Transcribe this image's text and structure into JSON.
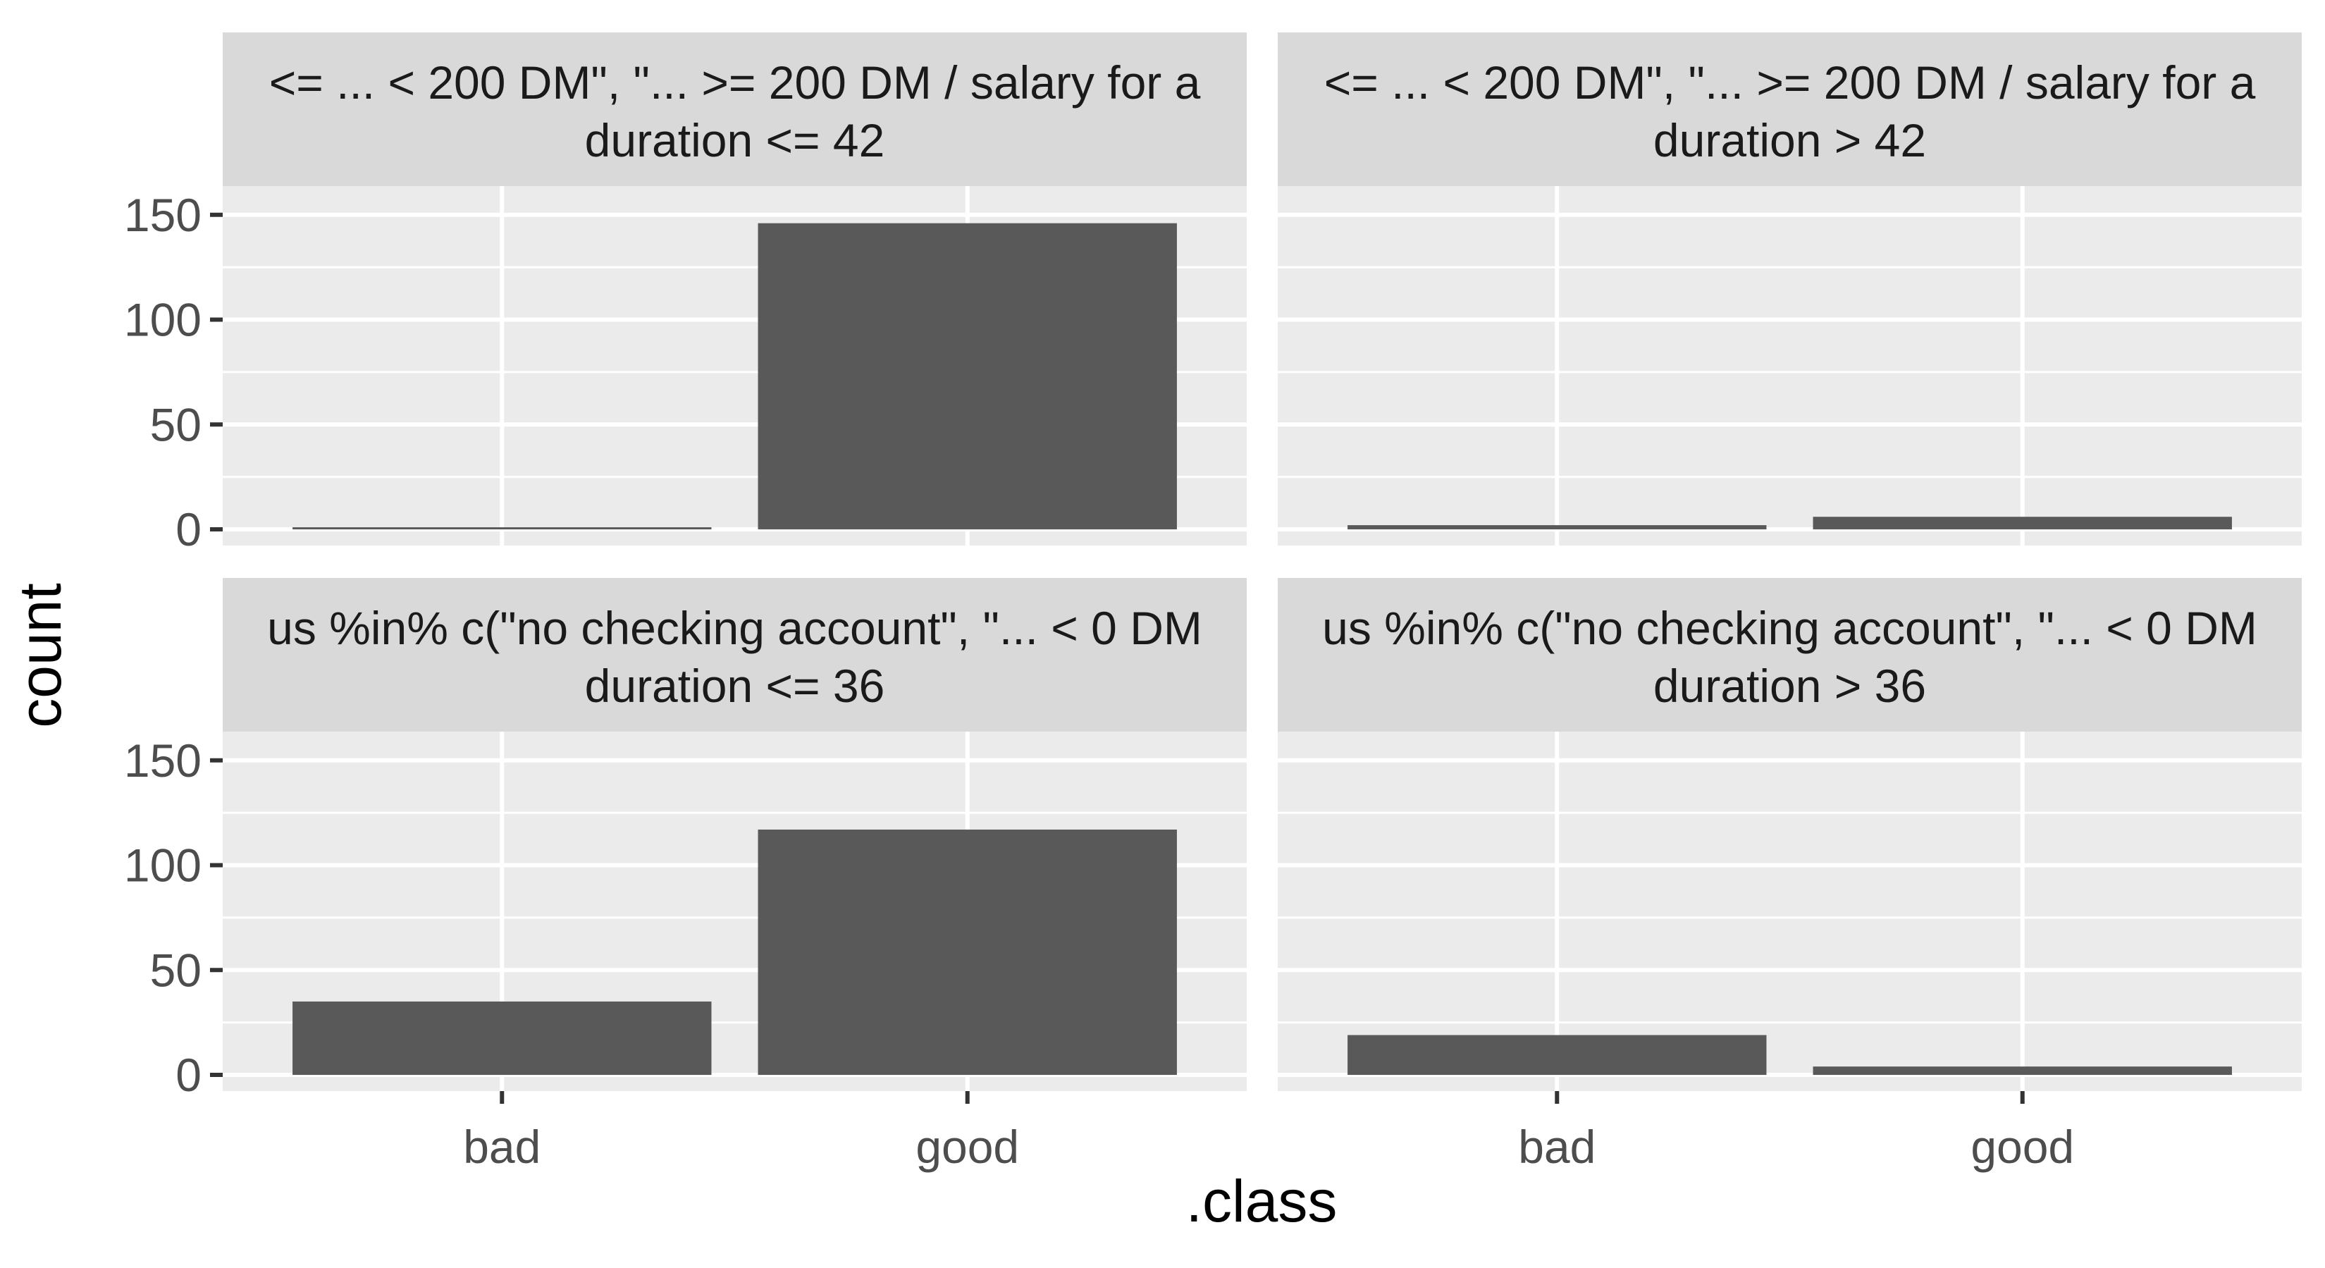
{
  "chart_data": {
    "type": "bar",
    "xlabel": ".class",
    "ylabel": "count",
    "categories": [
      "bad",
      "good"
    ],
    "ylim": [
      0,
      156
    ],
    "yticks": [
      0,
      50,
      100,
      150
    ],
    "yticks_labels": [
      "0",
      "50",
      "100",
      "150"
    ],
    "grid": true,
    "bar_color": "#595959",
    "panel_background": "#ebebeb",
    "strip_background": "#d9d9d9",
    "facets": [
      {
        "strip_line1": "<= ... < 200 DM\", \"... >= 200 DM / salary for a",
        "strip_line2": "duration <= 42",
        "values": [
          1,
          146
        ]
      },
      {
        "strip_line1": "<= ... < 200 DM\", \"... >= 200 DM / salary for a",
        "strip_line2": "duration > 42",
        "values": [
          2,
          6
        ]
      },
      {
        "strip_line1": "us %in% c(\"no checking account\", \"... < 0 DM",
        "strip_line2": "duration <= 36",
        "values": [
          35,
          117
        ]
      },
      {
        "strip_line1": "us %in% c(\"no checking account\", \"... < 0 DM",
        "strip_line2": "duration > 36",
        "values": [
          19,
          4
        ]
      }
    ]
  }
}
